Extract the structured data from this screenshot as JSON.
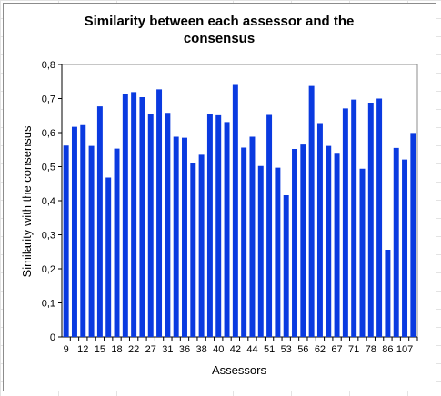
{
  "chart_data": {
    "type": "bar",
    "title_lines": [
      "Similarity between each assessor and the",
      "consensus"
    ],
    "xlabel": "Assessors",
    "ylabel": "Similarity with the consensus",
    "ylim": [
      0,
      0.8
    ],
    "yticks": [
      "0",
      "0,1",
      "0,2",
      "0,3",
      "0,4",
      "0,5",
      "0,6",
      "0,7",
      "0,8"
    ],
    "grid": false,
    "legend": "none",
    "bar_color": "#0a3ae0",
    "x_tick_labels": [
      "9",
      "12",
      "15",
      "18",
      "22",
      "27",
      "31",
      "36",
      "38",
      "40",
      "42",
      "44",
      "51",
      "53",
      "56",
      "62",
      "67",
      "71",
      "78",
      "86",
      "107"
    ],
    "values": [
      0.562,
      0.617,
      0.622,
      0.561,
      0.677,
      0.468,
      0.553,
      0.713,
      0.719,
      0.704,
      0.656,
      0.727,
      0.658,
      0.588,
      0.585,
      0.512,
      0.535,
      0.655,
      0.651,
      0.631,
      0.74,
      0.556,
      0.588,
      0.502,
      0.652,
      0.497,
      0.416,
      0.552,
      0.565,
      0.737,
      0.628,
      0.561,
      0.538,
      0.671,
      0.697,
      0.494,
      0.688,
      0.7,
      0.256,
      0.555,
      0.521,
      0.599
    ]
  }
}
